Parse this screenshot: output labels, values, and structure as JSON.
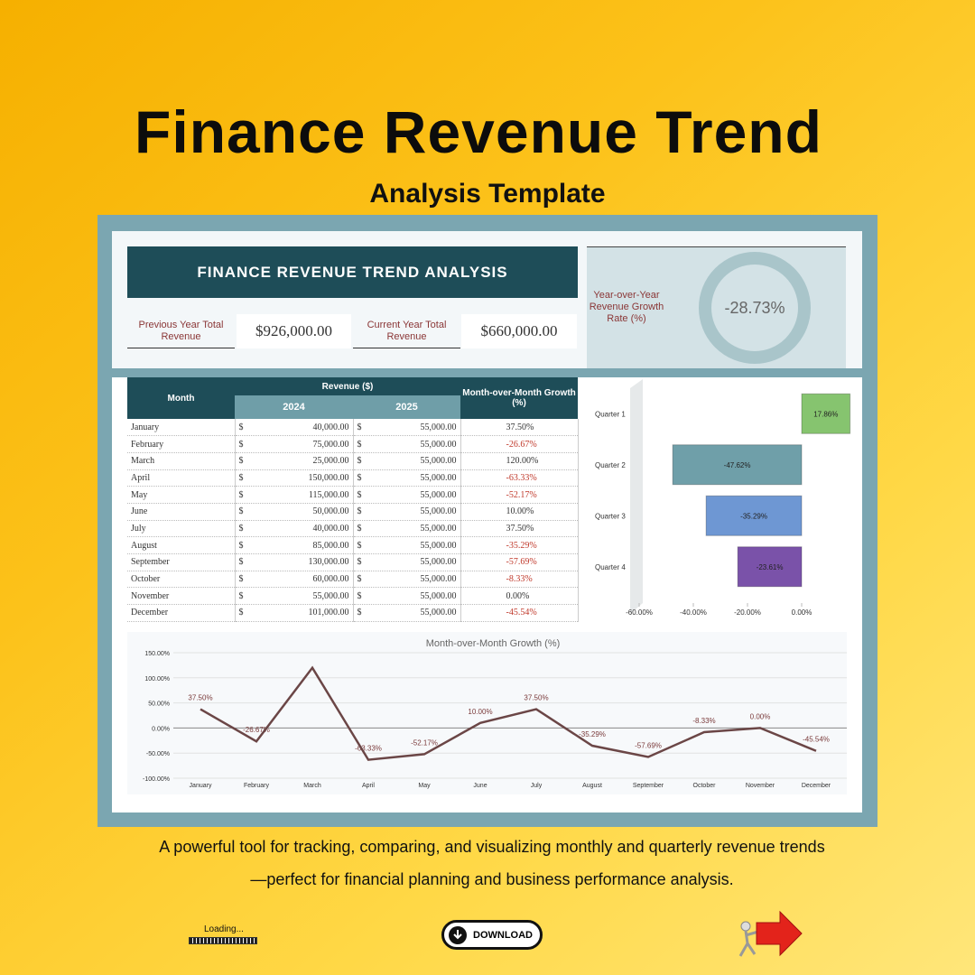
{
  "header": {
    "title": "Finance Revenue Trend",
    "subtitle": "Analysis Template"
  },
  "dashboard": {
    "title": "FINANCE REVENUE TREND ANALYSIS",
    "kpis": [
      {
        "label": "Previous Year Total Revenue",
        "value": "$926,000.00"
      },
      {
        "label": "Current Year Total Revenue",
        "value": "$660,000.00"
      }
    ],
    "yoy": {
      "label": "Year-over-Year Revenue Growth Rate (%)",
      "value": "-28.73%"
    }
  },
  "table": {
    "headers": {
      "month": "Month",
      "revenue": "Revenue ($)",
      "year1": "2024",
      "year2": "2025",
      "growth": "Month-over-Month Growth (%)"
    },
    "currency": "$",
    "rows": [
      [
        "January",
        "40,000.00",
        "55,000.00",
        "37.50%"
      ],
      [
        "February",
        "75,000.00",
        "55,000.00",
        "-26.67%"
      ],
      [
        "March",
        "25,000.00",
        "55,000.00",
        "120.00%"
      ],
      [
        "April",
        "150,000.00",
        "55,000.00",
        "-63.33%"
      ],
      [
        "May",
        "115,000.00",
        "55,000.00",
        "-52.17%"
      ],
      [
        "June",
        "50,000.00",
        "55,000.00",
        "10.00%"
      ],
      [
        "July",
        "40,000.00",
        "55,000.00",
        "37.50%"
      ],
      [
        "August",
        "85,000.00",
        "55,000.00",
        "-35.29%"
      ],
      [
        "September",
        "130,000.00",
        "55,000.00",
        "-57.69%"
      ],
      [
        "October",
        "60,000.00",
        "55,000.00",
        "-8.33%"
      ],
      [
        "November",
        "55,000.00",
        "55,000.00",
        "0.00%"
      ],
      [
        "December",
        "101,000.00",
        "55,000.00",
        "-45.54%"
      ]
    ]
  },
  "chart_data": [
    {
      "type": "hbar",
      "categories": [
        "Quarter 1",
        "Quarter 2",
        "Quarter 3",
        "Quarter 4"
      ],
      "values": [
        17.86,
        -47.62,
        -35.29,
        -23.61
      ],
      "value_labels": [
        "17.86%",
        "-47.62%",
        "-35.29%",
        "-23.61%"
      ],
      "colors": [
        "#86c46f",
        "#6f9fa9",
        "#6e97d3",
        "#7a52a9"
      ],
      "xlim": [
        -60,
        20
      ],
      "xticks": [
        {
          "value": -60,
          "label": "-60.00%"
        },
        {
          "value": -40,
          "label": "-40.00%"
        },
        {
          "value": -20,
          "label": "-20.00%"
        },
        {
          "value": 0,
          "label": "0.00%"
        }
      ]
    },
    {
      "type": "line",
      "title": "Month-over-Month Growth (%)",
      "categories": [
        "January",
        "February",
        "March",
        "April",
        "May",
        "June",
        "July",
        "August",
        "September",
        "October",
        "November",
        "December"
      ],
      "values": [
        37.5,
        -26.67,
        120,
        -63.33,
        -52.17,
        10,
        37.5,
        -35.29,
        -57.69,
        -8.33,
        0,
        -45.54
      ],
      "value_labels": [
        "37.50%",
        "-26.67%",
        null,
        "-63.33%",
        "-52.17%",
        "10.00%",
        "37.50%",
        "-35.29%",
        "-57.69%",
        "-8.33%",
        "0.00%",
        "-45.54%"
      ],
      "color": "#6b4646",
      "ylim": [
        -100,
        150
      ],
      "yticks": [
        {
          "value": -100,
          "label": "-100.00%"
        },
        {
          "value": -50,
          "label": "-50.00%"
        },
        {
          "value": 0,
          "label": "0.00%"
        },
        {
          "value": 50,
          "label": "50.00%"
        },
        {
          "value": 100,
          "label": "100.00%"
        },
        {
          "value": 150,
          "label": "150.00%"
        }
      ],
      "grid": true
    }
  ],
  "footer": {
    "description": [
      "A powerful tool for tracking, comparing, and visualizing monthly and quarterly revenue trends",
      "—perfect for financial planning and business performance analysis."
    ],
    "loading": "Loading...",
    "download": "DOWNLOAD"
  }
}
